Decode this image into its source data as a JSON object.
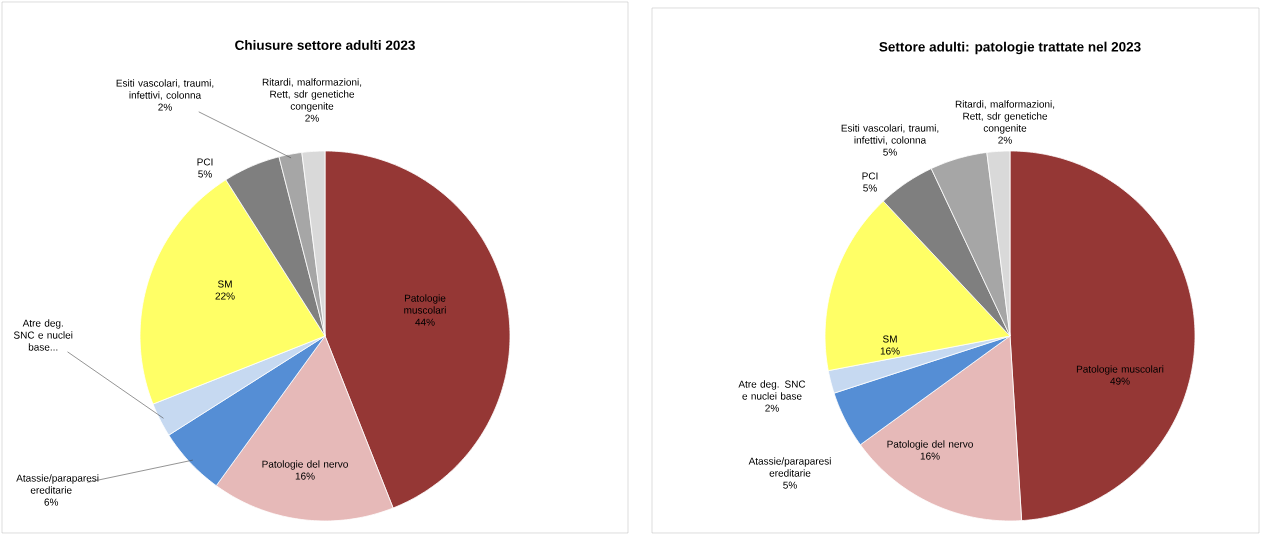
{
  "chart_data": [
    {
      "type": "pie",
      "title": "Chiusure settore adulti 2023",
      "categories": [
        "Patologie muscolari",
        "Patologie del nervo",
        "Atassie/paraparesi ereditarie",
        "Atre deg. SNC e nuclei base...",
        "SM",
        "PCI",
        "Esiti vascolari, traumi, infettivi, colonna",
        "Ritardi, malformazioni, Rett, sdr genetiche congenite"
      ],
      "values": [
        44,
        16,
        6,
        3,
        22,
        5,
        2,
        2
      ],
      "value_labels": [
        "44%",
        "16%",
        "6%",
        null,
        "22%",
        "5%",
        "2%",
        "2%"
      ],
      "colors": [
        "#953735",
        "#e6b9b8",
        "#558ed5",
        "#c6d9f1",
        "#ffff66",
        "#7f7f7f",
        "#a6a6a6",
        "#d9d9d9"
      ]
    },
    {
      "type": "pie",
      "title": "Settore adulti: patologie trattate nel 2023",
      "categories": [
        "Patologie muscolari",
        "Patologie del nervo",
        "Atassie/paraparesi ereditarie",
        "Atre deg. SNC e nuclei base",
        "SM",
        "PCI",
        "Esiti vascolari, traumi, infettivi, colonna",
        "Ritardi, malformazioni, Rett, sdr genetiche congenite"
      ],
      "values": [
        49,
        16,
        5,
        2,
        16,
        5,
        5,
        2
      ],
      "value_labels": [
        "49%",
        "16%",
        "5%",
        "2%",
        "16%",
        "5%",
        "5%",
        "2%"
      ],
      "colors": [
        "#953735",
        "#e6b9b8",
        "#558ed5",
        "#c6d9f1",
        "#ffff66",
        "#7f7f7f",
        "#a6a6a6",
        "#d9d9d9"
      ]
    }
  ]
}
